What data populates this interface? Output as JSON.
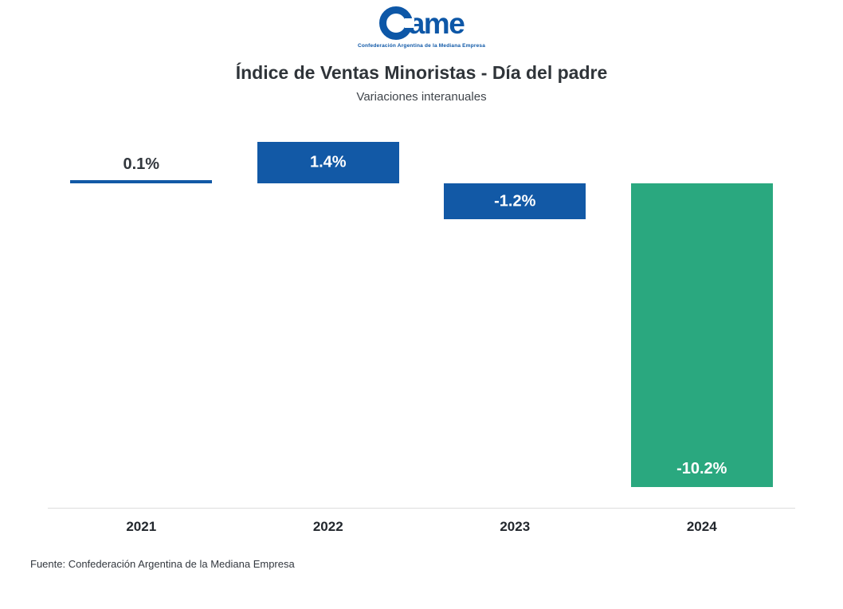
{
  "logo": {
    "brand": "ame",
    "caption": "Confederación Argentina de la Mediana Empresa"
  },
  "header": {
    "title": "Índice de Ventas Minoristas - Día del padre",
    "subtitle": "Variaciones interanuales"
  },
  "footer": {
    "source": "Fuente: Confederación Argentina de la Mediana Empresa"
  },
  "chart_data": {
    "type": "bar",
    "title": "Índice de Ventas Minoristas - Día del padre",
    "subtitle": "Variaciones interanuales",
    "categories": [
      "2021",
      "2022",
      "2023",
      "2024"
    ],
    "values": [
      0.1,
      1.4,
      -1.2,
      -10.2
    ],
    "value_labels": [
      "0.1%",
      "1.4%",
      "-1.2%",
      "-10.2%"
    ],
    "bar_colors": [
      "#1259a6",
      "#1259a6",
      "#1259a6",
      "#2aa87f"
    ],
    "label_positions": [
      "above",
      "center",
      "center",
      "bottom"
    ],
    "label_color_inside": "#ffffff",
    "label_color_outside": "#32373d",
    "axis_line_color": "#dcdcdc",
    "ylim": [
      -11,
      2
    ],
    "grid": false,
    "legend": "none",
    "xlabel": "",
    "ylabel": ""
  }
}
